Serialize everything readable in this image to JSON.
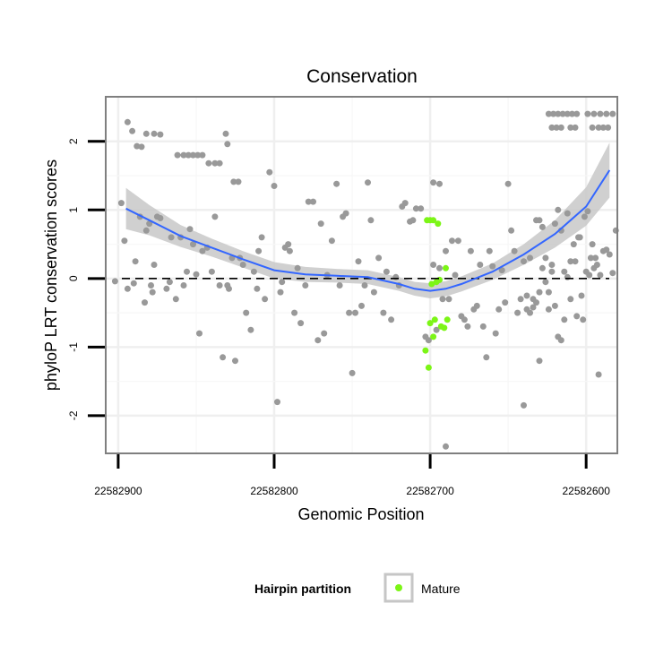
{
  "chart_data": {
    "type": "scatter",
    "title": "Conservation",
    "xlabel": "Genomic Position",
    "ylabel": "phyloP LRT conservation scores",
    "x_reversed": true,
    "xlim": [
      22582908,
      22582580
    ],
    "ylim": [
      -2.55,
      2.65
    ],
    "xticks": [
      22582900,
      22582800,
      22582700,
      22582600
    ],
    "xtick_labels": [
      "22582900",
      "22582800",
      "22582700",
      "22582600"
    ],
    "yticks": [
      -2,
      -1,
      0,
      1,
      2
    ],
    "ytick_labels": [
      "-2",
      "-1",
      "0",
      "1",
      "2"
    ],
    "grid": true,
    "reference_line": {
      "y": 0,
      "style": "dashed"
    },
    "colors": {
      "background_points": "#999999",
      "mature": "#7cf516",
      "smooth": "#3366ff",
      "ribbon": "#c8c8c8",
      "panel_border": "#7f7f7f"
    },
    "legend": {
      "title": "Hairpin partition",
      "placement": "bottom",
      "entries": [
        {
          "label": "Mature",
          "color": "#7cf516"
        }
      ]
    },
    "smooth_curve": {
      "x": [
        22582895,
        22582880,
        22582860,
        22582840,
        22582820,
        22582800,
        22582780,
        22582760,
        22582740,
        22582720,
        22582710,
        22582700,
        22582690,
        22582680,
        22582660,
        22582640,
        22582620,
        22582600,
        22582585
      ],
      "y": [
        1.02,
        0.85,
        0.62,
        0.45,
        0.28,
        0.12,
        0.06,
        0.04,
        0.02,
        -0.08,
        -0.15,
        -0.18,
        -0.15,
        -0.08,
        0.1,
        0.35,
        0.65,
        1.05,
        1.58
      ],
      "se": [
        0.3,
        0.22,
        0.16,
        0.13,
        0.12,
        0.12,
        0.11,
        0.1,
        0.1,
        0.1,
        0.1,
        0.11,
        0.11,
        0.11,
        0.12,
        0.15,
        0.2,
        0.28,
        0.4
      ]
    },
    "series": [
      {
        "name": "Other",
        "points": [
          [
            22582894,
            2.28
          ],
          [
            22582891,
            2.15
          ],
          [
            22582888,
            1.93
          ],
          [
            22582885,
            1.92
          ],
          [
            22582882,
            2.11
          ],
          [
            22582877,
            2.11
          ],
          [
            22582873,
            2.1
          ],
          [
            22582862,
            1.8
          ],
          [
            22582858,
            1.8
          ],
          [
            22582855,
            1.8
          ],
          [
            22582852,
            1.8
          ],
          [
            22582849,
            1.8
          ],
          [
            22582846,
            1.8
          ],
          [
            22582842,
            1.68
          ],
          [
            22582838,
            1.68
          ],
          [
            22582835,
            1.68
          ],
          [
            22582831,
            2.11
          ],
          [
            22582830,
            1.96
          ],
          [
            22582826,
            1.41
          ],
          [
            22582823,
            1.41
          ],
          [
            22582902,
            -0.04
          ],
          [
            22582898,
            1.1
          ],
          [
            22582896,
            0.55
          ],
          [
            22582894,
            -0.15
          ],
          [
            22582890,
            -0.07
          ],
          [
            22582889,
            0.25
          ],
          [
            22582886,
            0.9
          ],
          [
            22582883,
            -0.35
          ],
          [
            22582882,
            0.7
          ],
          [
            22582880,
            0.8
          ],
          [
            22582879,
            -0.1
          ],
          [
            22582878,
            -0.2
          ],
          [
            22582877,
            0.2
          ],
          [
            22582875,
            0.9
          ],
          [
            22582873,
            0.88
          ],
          [
            22582869,
            -0.15
          ],
          [
            22582867,
            -0.05
          ],
          [
            22582866,
            0.6
          ],
          [
            22582863,
            -0.3
          ],
          [
            22582860,
            0.6
          ],
          [
            22582858,
            -0.1
          ],
          [
            22582856,
            0.1
          ],
          [
            22582854,
            0.72
          ],
          [
            22582852,
            0.5
          ],
          [
            22582850,
            0.06
          ],
          [
            22582848,
            -0.8
          ],
          [
            22582846,
            0.4
          ],
          [
            22582843,
            0.45
          ],
          [
            22582840,
            0.1
          ],
          [
            22582838,
            0.9
          ],
          [
            22582835,
            -0.1
          ],
          [
            22582833,
            -1.15
          ],
          [
            22582830,
            -0.1
          ],
          [
            22582829,
            -0.15
          ],
          [
            22582827,
            0.3
          ],
          [
            22582825,
            -1.2
          ],
          [
            22582822,
            0.3
          ],
          [
            22582820,
            0.2
          ],
          [
            22582818,
            -0.5
          ],
          [
            22582815,
            -0.75
          ],
          [
            22582813,
            0.1
          ],
          [
            22582811,
            -0.15
          ],
          [
            22582810,
            0.4
          ],
          [
            22582808,
            0.6
          ],
          [
            22582806,
            -0.3
          ],
          [
            22582803,
            1.55
          ],
          [
            22582800,
            1.35
          ],
          [
            22582798,
            -1.8
          ],
          [
            22582796,
            -0.2
          ],
          [
            22582795,
            -0.05
          ],
          [
            22582793,
            0.45
          ],
          [
            22582791,
            0.5
          ],
          [
            22582790,
            0.4
          ],
          [
            22582787,
            -0.5
          ],
          [
            22582785,
            0.15
          ],
          [
            22582783,
            -0.65
          ],
          [
            22582780,
            -0.1
          ],
          [
            22582778,
            1.12
          ],
          [
            22582775,
            1.12
          ],
          [
            22582772,
            -0.9
          ],
          [
            22582770,
            0.8
          ],
          [
            22582768,
            -0.8
          ],
          [
            22582766,
            0.05
          ],
          [
            22582763,
            0.55
          ],
          [
            22582760,
            1.38
          ],
          [
            22582758,
            -0.1
          ],
          [
            22582756,
            0.9
          ],
          [
            22582754,
            0.95
          ],
          [
            22582752,
            -0.5
          ],
          [
            22582750,
            -1.38
          ],
          [
            22582748,
            -0.5
          ],
          [
            22582746,
            0.25
          ],
          [
            22582744,
            -0.4
          ],
          [
            22582742,
            -0.1
          ],
          [
            22582740,
            1.4
          ],
          [
            22582738,
            0.85
          ],
          [
            22582736,
            -0.2
          ],
          [
            22582733,
            0.3
          ],
          [
            22582730,
            -0.5
          ],
          [
            22582728,
            0.1
          ],
          [
            22582725,
            -0.6
          ],
          [
            22582722,
            0.02
          ],
          [
            22582720,
            -0.1
          ],
          [
            22582718,
            1.05
          ],
          [
            22582716,
            1.1
          ],
          [
            22582713,
            0.83
          ],
          [
            22582711,
            0.85
          ],
          [
            22582709,
            1.02
          ],
          [
            22582706,
            1.02
          ],
          [
            22582703,
            -0.85
          ],
          [
            22582701,
            -0.9
          ],
          [
            22582698,
            0.2
          ],
          [
            22582696,
            -0.75
          ],
          [
            22582694,
            0.15
          ],
          [
            22582692,
            -0.3
          ],
          [
            22582690,
            0.4
          ],
          [
            22582688,
            -0.3
          ],
          [
            22582686,
            0.55
          ],
          [
            22582684,
            0.05
          ],
          [
            22582682,
            0.55
          ],
          [
            22582680,
            -0.55
          ],
          [
            22582678,
            -0.6
          ],
          [
            22582676,
            -0.7
          ],
          [
            22582674,
            0.4
          ],
          [
            22582672,
            -0.45
          ],
          [
            22582670,
            -0.4
          ],
          [
            22582668,
            0.2
          ],
          [
            22582666,
            -0.7
          ],
          [
            22582664,
            -1.15
          ],
          [
            22582662,
            0.4
          ],
          [
            22582660,
            0.18
          ],
          [
            22582658,
            -0.8
          ],
          [
            22582656,
            -0.45
          ],
          [
            22582654,
            0.12
          ],
          [
            22582652,
            -0.35
          ],
          [
            22582650,
            1.38
          ],
          [
            22582648,
            0.7
          ],
          [
            22582646,
            0.4
          ],
          [
            22582644,
            -0.5
          ],
          [
            22582642,
            -0.3
          ],
          [
            22582640,
            0.25
          ],
          [
            22582638,
            -0.25
          ],
          [
            22582636,
            0.3
          ],
          [
            22582634,
            -0.3
          ],
          [
            22582632,
            0.85
          ],
          [
            22582630,
            0.85
          ],
          [
            22582628,
            0.75
          ],
          [
            22582626,
            -0.05
          ],
          [
            22582624,
            -0.45
          ],
          [
            22582622,
            0.2
          ],
          [
            22582620,
            -0.4
          ],
          [
            22582618,
            -0.85
          ],
          [
            22582616,
            -0.9
          ],
          [
            22582614,
            -0.6
          ],
          [
            22582612,
            0.02
          ],
          [
            22582610,
            0.25
          ],
          [
            22582608,
            0.5
          ],
          [
            22582606,
            -0.55
          ],
          [
            22582604,
            0.6
          ],
          [
            22582602,
            -0.6
          ],
          [
            22582600,
            0.1
          ],
          [
            22582598,
            0.05
          ],
          [
            22582596,
            0.5
          ],
          [
            22582594,
            0.3
          ],
          [
            22582592,
            -1.4
          ],
          [
            22582690,
            -2.45
          ],
          [
            22582640,
            -1.85
          ],
          [
            22582630,
            -1.2
          ],
          [
            22582698,
            1.4
          ],
          [
            22582694,
            1.38
          ],
          [
            22582638,
            -0.45
          ],
          [
            22582636,
            -0.5
          ],
          [
            22582634,
            -0.42
          ],
          [
            22582632,
            -0.35
          ],
          [
            22582630,
            -0.2
          ],
          [
            22582628,
            0.15
          ],
          [
            22582626,
            0.3
          ],
          [
            22582624,
            -0.2
          ],
          [
            22582622,
            0.1
          ],
          [
            22582620,
            0.8
          ],
          [
            22582618,
            1.0
          ],
          [
            22582616,
            0.7
          ],
          [
            22582614,
            0.1
          ],
          [
            22582612,
            0.95
          ],
          [
            22582610,
            -0.3
          ],
          [
            22582607,
            0.25
          ],
          [
            22582605,
            0.6
          ],
          [
            22582603,
            -0.25
          ],
          [
            22582601,
            0.9
          ],
          [
            22582599,
            0.98
          ],
          [
            22582597,
            0.3
          ],
          [
            22582595,
            0.15
          ],
          [
            22582593,
            0.2
          ],
          [
            22582591,
            0.05
          ],
          [
            22582589,
            0.4
          ],
          [
            22582587,
            0.42
          ],
          [
            22582585,
            0.35
          ],
          [
            22582583,
            0.08
          ],
          [
            22582581,
            0.7
          ],
          [
            22582624,
            2.4
          ],
          [
            22582621,
            2.4
          ],
          [
            22582618,
            2.4
          ],
          [
            22582615,
            2.4
          ],
          [
            22582612,
            2.4
          ],
          [
            22582609,
            2.4
          ],
          [
            22582606,
            2.4
          ],
          [
            22582622,
            2.2
          ],
          [
            22582619,
            2.2
          ],
          [
            22582616,
            2.2
          ],
          [
            22582610,
            2.2
          ],
          [
            22582607,
            2.2
          ],
          [
            22582599,
            2.4
          ],
          [
            22582595,
            2.4
          ],
          [
            22582591,
            2.4
          ],
          [
            22582587,
            2.4
          ],
          [
            22582583,
            2.4
          ],
          [
            22582596,
            2.2
          ],
          [
            22582592,
            2.2
          ],
          [
            22582589,
            2.2
          ],
          [
            22582586,
            2.2
          ]
        ]
      },
      {
        "name": "Mature",
        "points": [
          [
            22582702,
            0.85
          ],
          [
            22582700,
            0.85
          ],
          [
            22582698,
            0.85
          ],
          [
            22582695,
            0.8
          ],
          [
            22582696,
            -0.05
          ],
          [
            22582699,
            -0.08
          ],
          [
            22582694,
            -0.02
          ],
          [
            22582690,
            0.15
          ],
          [
            22582697,
            -0.6
          ],
          [
            22582693,
            -0.7
          ],
          [
            22582691,
            -0.72
          ],
          [
            22582689,
            -0.6
          ],
          [
            22582698,
            -0.85
          ],
          [
            22582703,
            -1.05
          ],
          [
            22582701,
            -1.3
          ],
          [
            22582700,
            -0.65
          ]
        ]
      }
    ]
  }
}
